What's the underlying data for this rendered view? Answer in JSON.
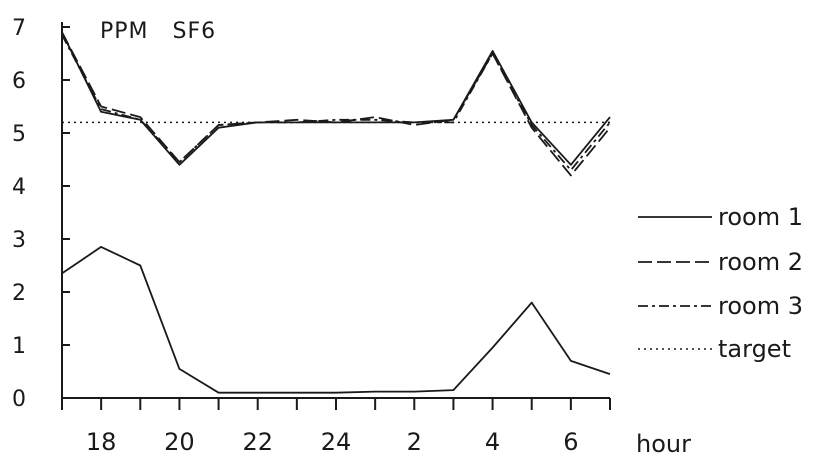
{
  "chart_data": {
    "type": "line",
    "title": "PPM   SF6",
    "xlabel": "hour",
    "ylabel": "",
    "xlim": [
      17,
      31
    ],
    "ylim": [
      0,
      7
    ],
    "x_ticks": [
      17,
      18,
      19,
      20,
      21,
      22,
      23,
      24,
      25,
      26,
      27,
      28,
      29,
      30,
      31
    ],
    "x_tick_labels": [
      "18",
      "20",
      "22",
      "24",
      "2",
      "4",
      "6"
    ],
    "x_tick_label_values": [
      18,
      20,
      22,
      24,
      26,
      28,
      30
    ],
    "y_tick_labels": [
      "0",
      "1",
      "2",
      "3",
      "4",
      "5",
      "6",
      "7"
    ],
    "grid": false,
    "legend_position": "right",
    "x": [
      17,
      18,
      19,
      20,
      21,
      22,
      23,
      24,
      25,
      26,
      27,
      28,
      29,
      30,
      31
    ],
    "series": [
      {
        "name": "room 1",
        "dash": "solid",
        "values": [
          6.9,
          5.4,
          5.25,
          4.4,
          5.1,
          5.2,
          5.2,
          5.2,
          5.2,
          5.2,
          5.25,
          6.55,
          5.2,
          4.4,
          5.3
        ]
      },
      {
        "name": "room 2",
        "dash": "long-dash",
        "values": [
          6.9,
          5.5,
          5.3,
          4.45,
          5.15,
          5.2,
          5.25,
          5.2,
          5.3,
          5.15,
          5.25,
          6.5,
          5.1,
          4.2,
          5.1
        ]
      },
      {
        "name": "room 3",
        "dash": "dash-dot",
        "values": [
          6.85,
          5.45,
          5.25,
          4.45,
          5.15,
          5.2,
          5.2,
          5.25,
          5.25,
          5.2,
          5.2,
          6.5,
          5.15,
          4.3,
          5.2
        ]
      },
      {
        "name": "target",
        "dash": "dotted",
        "values": [
          5.2,
          5.2,
          5.2,
          5.2,
          5.2,
          5.2,
          5.2,
          5.2,
          5.2,
          5.2,
          5.2,
          5.2,
          5.2,
          5.2,
          5.2
        ]
      },
      {
        "dash": "solid",
        "values": [
          2.35,
          2.85,
          2.5,
          0.55,
          0.1,
          0.1,
          0.1,
          0.1,
          0.12,
          0.12,
          0.15,
          0.95,
          1.8,
          0.7,
          0.45
        ]
      }
    ],
    "legend": [
      "room 1",
      "room 2",
      "room 3",
      "target"
    ]
  }
}
